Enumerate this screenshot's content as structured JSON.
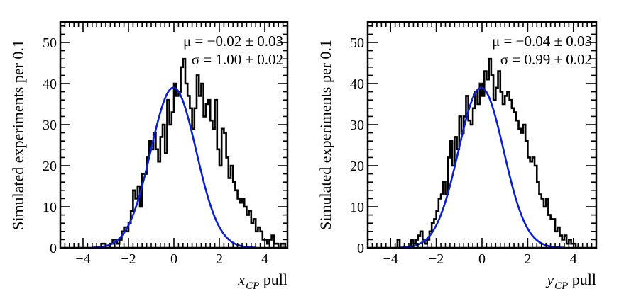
{
  "chart_data": [
    {
      "type": "histogram",
      "title": "",
      "xlabel": "x_CP pull",
      "xlabel_var": "x",
      "xlabel_sub": "CP",
      "xlabel_suffix": " pull",
      "ylabel": "Simulated experiments per 0.1",
      "xlim": [
        -5,
        5
      ],
      "ylim": [
        0,
        55
      ],
      "xticks": [
        -4,
        -2,
        0,
        2,
        4
      ],
      "xtick_labels": [
        "−4",
        "−2",
        "0",
        "2",
        "4"
      ],
      "yticks": [
        0,
        10,
        20,
        30,
        40,
        50
      ],
      "ytick_labels": [
        "0",
        "10",
        "20",
        "30",
        "40",
        "50"
      ],
      "annotations": [
        "μ = −0.02 ± 0.03",
        "σ = 1.00 ± 0.02"
      ],
      "fit": {
        "mu": -0.02,
        "sigma": 1.0,
        "peak": 39,
        "color": "#0a1ed2",
        "range": [
          -3.6,
          3.6
        ]
      },
      "bin_width": 0.1,
      "bins_start": -3.2,
      "counts": [
        1,
        1,
        0,
        0,
        1,
        2,
        2,
        1,
        2,
        4,
        5,
        4,
        6,
        9,
        14,
        12,
        15,
        10,
        18,
        18,
        22,
        26,
        24,
        28,
        24,
        21,
        27,
        30,
        23,
        36,
        30,
        33,
        40,
        37,
        38,
        44,
        46,
        40,
        37,
        34,
        29,
        34,
        42,
        37,
        40,
        32,
        35,
        36,
        31,
        29,
        36,
        24,
        20,
        29,
        28,
        22,
        17,
        20,
        16,
        14,
        12,
        11,
        12,
        10,
        8,
        9,
        6,
        7,
        4,
        5,
        4,
        2,
        2,
        1,
        2,
        3,
        1,
        1,
        0,
        1,
        1
      ]
    },
    {
      "type": "histogram",
      "title": "",
      "xlabel": "y_CP pull",
      "xlabel_var": "y",
      "xlabel_sub": "CP",
      "xlabel_suffix": " pull",
      "ylabel": "Simulated experiments per 0.1",
      "xlim": [
        -5,
        5
      ],
      "ylim": [
        0,
        55
      ],
      "xticks": [
        -4,
        -2,
        0,
        2,
        4
      ],
      "xtick_labels": [
        "−4",
        "−2",
        "0",
        "2",
        "4"
      ],
      "yticks": [
        0,
        10,
        20,
        30,
        40,
        50
      ],
      "ytick_labels": [
        "0",
        "10",
        "20",
        "30",
        "40",
        "50"
      ],
      "annotations": [
        "μ = −0.04 ± 0.03",
        "σ = 0.99 ± 0.02"
      ],
      "fit": {
        "mu": -0.04,
        "sigma": 0.99,
        "peak": 39,
        "color": "#0a1ed2",
        "range": [
          -3.6,
          3.6
        ]
      },
      "bin_width": 0.1,
      "bins_start": -3.7,
      "counts": [
        2,
        0,
        0,
        0,
        0,
        0,
        2,
        1,
        2,
        3,
        4,
        2,
        1,
        2,
        4,
        6,
        7,
        9,
        12,
        13,
        16,
        13,
        22,
        26,
        20,
        27,
        24,
        32,
        28,
        32,
        37,
        31,
        30,
        34,
        38,
        35,
        40,
        37,
        43,
        41,
        46,
        42,
        36,
        39,
        43,
        38,
        35,
        37,
        38,
        36,
        34,
        33,
        31,
        29,
        28,
        30,
        26,
        22,
        21,
        22,
        20,
        16,
        13,
        12,
        10,
        12,
        8,
        7,
        7,
        4,
        5,
        3,
        2,
        3,
        1,
        2,
        1,
        1
      ]
    }
  ]
}
